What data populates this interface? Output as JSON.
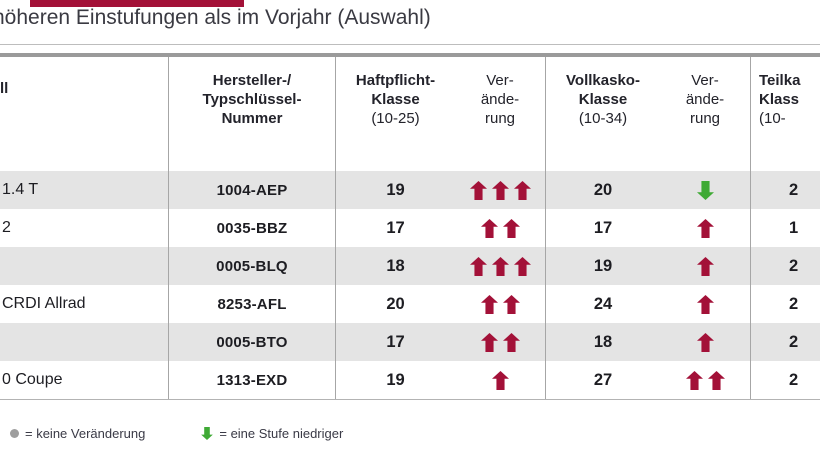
{
  "title": "höheren Einstufungen als im Vorjahr (Auswahl)",
  "table": {
    "headers": {
      "model": "ll",
      "key": "Hersteller-/\nTypschlüssel-\nNummer",
      "haftpflicht": {
        "title": "Haftpflicht-\nKlasse",
        "range": "(10-25)"
      },
      "haftpflicht_change": "Ver-\nände-\nrung",
      "vollkasko": {
        "title": "Vollkasko-\nKlasse",
        "range": "(10-34)"
      },
      "vollkasko_change": "Ver-\nände-\nrung",
      "teilkasko": {
        "title": "Teilka\nKlass",
        "range": "(10-"
      }
    },
    "rows": [
      {
        "model": "1.4 T",
        "key": "1004-AEP",
        "haftpflicht": "19",
        "haftpflicht_change": {
          "dir": "up",
          "count": 3
        },
        "vollkasko": "20",
        "vollkasko_change": {
          "dir": "down",
          "count": 1
        },
        "teilkasko": "2"
      },
      {
        "model": "2",
        "key": "0035-BBZ",
        "haftpflicht": "17",
        "haftpflicht_change": {
          "dir": "up",
          "count": 2
        },
        "vollkasko": "17",
        "vollkasko_change": {
          "dir": "up",
          "count": 1
        },
        "teilkasko": "1"
      },
      {
        "model": "",
        "key": "0005-BLQ",
        "haftpflicht": "18",
        "haftpflicht_change": {
          "dir": "up",
          "count": 3
        },
        "vollkasko": "19",
        "vollkasko_change": {
          "dir": "up",
          "count": 1
        },
        "teilkasko": "2"
      },
      {
        "model": "CRDI Allrad",
        "key": "8253-AFL",
        "haftpflicht": "20",
        "haftpflicht_change": {
          "dir": "up",
          "count": 2
        },
        "vollkasko": "24",
        "vollkasko_change": {
          "dir": "up",
          "count": 1
        },
        "teilkasko": "2"
      },
      {
        "model": "",
        "key": "0005-BTO",
        "haftpflicht": "17",
        "haftpflicht_change": {
          "dir": "up",
          "count": 2
        },
        "vollkasko": "18",
        "vollkasko_change": {
          "dir": "up",
          "count": 1
        },
        "teilkasko": "2"
      },
      {
        "model": "0 Coupe",
        "key": "1313-EXD",
        "haftpflicht": "19",
        "haftpflicht_change": {
          "dir": "up",
          "count": 1
        },
        "vollkasko": "27",
        "vollkasko_change": {
          "dir": "up",
          "count": 2
        },
        "teilkasko": "2"
      }
    ]
  },
  "legend": {
    "no_change": "= keine Veränderung",
    "one_lower": "= eine Stufe niedriger"
  },
  "colors": {
    "arrow_up": "#a31138",
    "arrow_down": "#3faa35",
    "stripe": "#e4e4e4",
    "top_bar": "#a31138"
  }
}
